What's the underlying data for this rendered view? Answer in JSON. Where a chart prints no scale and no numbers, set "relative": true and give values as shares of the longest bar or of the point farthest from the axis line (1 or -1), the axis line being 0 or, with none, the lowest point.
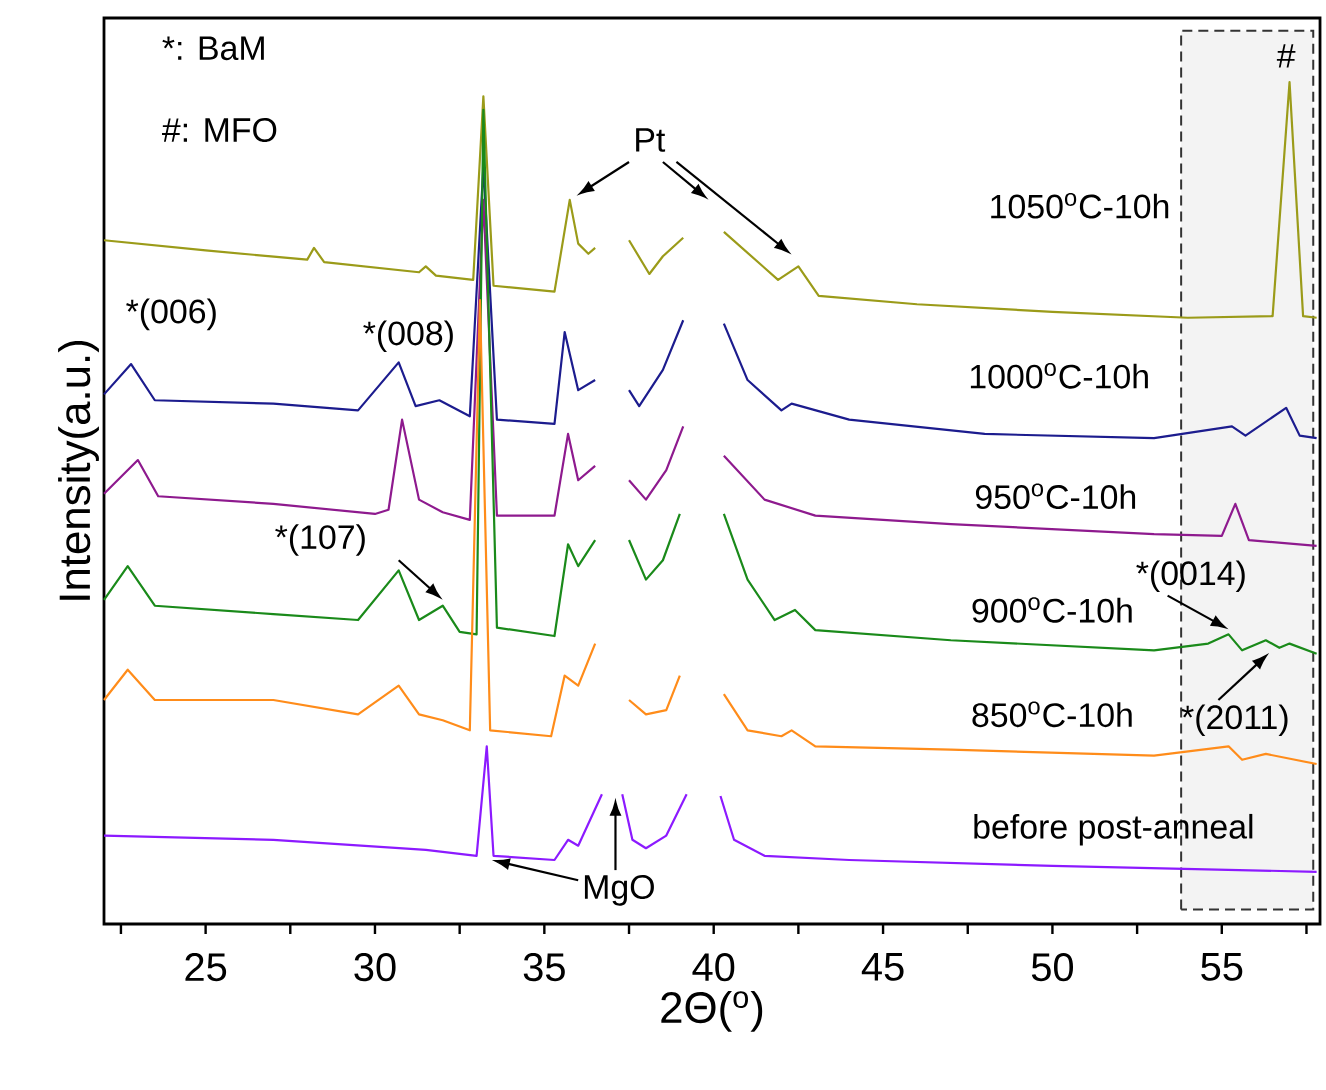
{
  "chart_data": {
    "type": "line",
    "relative": true,
    "xlabel": "2Θ($^{o}$)",
    "ylabel": "Intensity(a.u.)",
    "xlim": [
      22.0,
      57.9
    ],
    "xticks": [
      {
        "value": 22.5,
        "label": null
      },
      25,
      {
        "value": 27.5,
        "label": null
      },
      30,
      {
        "value": 32.5,
        "label": null
      },
      35,
      {
        "value": 37.5,
        "label": null
      },
      40,
      {
        "value": 42.5,
        "label": null
      },
      45,
      {
        "value": 47.5,
        "label": null
      },
      50,
      {
        "value": 52.5,
        "label": null
      },
      55,
      {
        "value": 57.5,
        "label": null
      }
    ],
    "tick_labels": "x",
    "legend": false,
    "grid": false,
    "marker": "none",
    "line_style": "solid",
    "bands": [
      {
        "axis": "x",
        "from": 53.8,
        "to": 57.7,
        "color": "#333333"
      }
    ],
    "annotations": [
      "*: BaM",
      "#: MFO",
      "Pt",
      "*(006)",
      "*(008)",
      "*(107)",
      "*(0014)",
      "*(2011)",
      "#",
      "MgO"
    ],
    "series": [
      {
        "name": "1050$^{o}$C-10h",
        "color": "#9b9b19",
        "x": [
          22.0,
          25.0,
          28.0,
          28.2,
          28.5,
          31.3,
          31.5,
          31.8,
          32.9,
          33.2,
          33.5,
          35.3,
          35.75,
          36.0,
          36.3,
          36.5,
          37.0,
          37.5,
          38.1,
          38.5,
          39.1,
          39.7,
          40.3,
          41.9,
          42.5,
          43.1,
          46,
          50,
          54,
          56.5,
          57.0,
          57.4,
          57.8
        ],
        "values": [
          0.812,
          0.8,
          0.789,
          0.803,
          0.786,
          0.774,
          0.781,
          0.77,
          0.765,
          0.983,
          0.758,
          0.751,
          0.86,
          0.808,
          0.796,
          0.803,
          null,
          0.812,
          0.772,
          0.793,
          0.815,
          null,
          0.822,
          0.765,
          0.781,
          0.746,
          0.736,
          0.727,
          0.72,
          0.722,
          1.0,
          0.722,
          0.72
        ]
      },
      {
        "name": "1000$^{o}$C-10h",
        "color": "#1c1c8e",
        "x": [
          22.0,
          22.8,
          23.5,
          27,
          29.5,
          30.7,
          31.2,
          31.9,
          32.8,
          33.2,
          33.6,
          35.3,
          35.6,
          36.0,
          36.5,
          37.0,
          37.5,
          37.8,
          38.5,
          39.1,
          39.7,
          40.3,
          41,
          42,
          42.3,
          44,
          48,
          53,
          55.3,
          55.7,
          56.9,
          57.3,
          57.8
        ],
        "values": [
          0.629,
          0.665,
          0.622,
          0.618,
          0.61,
          0.667,
          0.615,
          0.622,
          0.603,
          0.9,
          0.599,
          0.594,
          0.703,
          0.634,
          0.646,
          null,
          0.634,
          0.615,
          0.658,
          0.717,
          null,
          0.713,
          0.646,
          0.61,
          0.618,
          0.599,
          0.582,
          0.577,
          0.591,
          0.58,
          0.613,
          0.58,
          0.577
        ]
      },
      {
        "name": "950$^{o}$C-10h",
        "color": "#8e1a8e",
        "x": [
          22.0,
          23.0,
          23.6,
          27,
          30,
          30.4,
          30.8,
          31.3,
          32,
          32.8,
          33.2,
          33.6,
          35.3,
          35.7,
          36.0,
          36.5,
          37.0,
          37.5,
          38.0,
          38.6,
          39.1,
          39.7,
          40.3,
          41.5,
          43,
          47,
          53,
          55.0,
          55.4,
          55.8,
          57.8
        ],
        "values": [
          0.511,
          0.551,
          0.508,
          0.499,
          0.487,
          0.492,
          0.599,
          0.504,
          0.489,
          0.48,
          0.86,
          0.485,
          0.485,
          0.582,
          0.527,
          0.544,
          null,
          0.527,
          0.504,
          0.539,
          0.591,
          null,
          0.556,
          0.504,
          0.485,
          0.475,
          0.463,
          0.461,
          0.499,
          0.456,
          0.449
        ]
      },
      {
        "name": "900$^{o}$C-10h",
        "color": "#1a8a1a",
        "x": [
          22.0,
          22.7,
          23.5,
          27,
          29.5,
          30.7,
          31.3,
          32.0,
          32.5,
          33.0,
          33.2,
          33.6,
          35.3,
          35.7,
          36.0,
          36.5,
          37.0,
          37.5,
          38.0,
          38.5,
          39.0,
          39.7,
          40.3,
          41,
          41.8,
          42.4,
          43,
          47,
          53,
          54.6,
          55.2,
          55.6,
          56.3,
          56.7,
          57.0,
          57.8
        ],
        "values": [
          0.385,
          0.425,
          0.378,
          0.368,
          0.361,
          0.42,
          0.361,
          0.378,
          0.347,
          0.344,
          0.967,
          0.352,
          0.342,
          0.451,
          0.425,
          0.456,
          null,
          0.456,
          0.409,
          0.432,
          0.487,
          null,
          0.487,
          0.409,
          0.361,
          0.373,
          0.349,
          0.337,
          0.325,
          0.333,
          0.344,
          0.325,
          0.337,
          0.328,
          0.333,
          0.321
        ]
      },
      {
        "name": "850$^{o}$C-10h",
        "color": "#ff8c1a",
        "x": [
          22.0,
          22.7,
          23.5,
          27,
          29.5,
          30.7,
          31.3,
          32.0,
          32.8,
          33.1,
          33.4,
          35.2,
          35.6,
          36.0,
          36.5,
          37.0,
          37.5,
          38.0,
          38.6,
          39.0,
          39.7,
          40.3,
          41,
          42,
          42.3,
          43,
          47,
          53,
          55.2,
          55.6,
          56.3,
          57.8
        ],
        "values": [
          0.266,
          0.302,
          0.266,
          0.266,
          0.249,
          0.283,
          0.249,
          0.242,
          0.23,
          0.741,
          0.23,
          0.223,
          0.295,
          0.283,
          0.333,
          null,
          0.266,
          0.249,
          0.254,
          0.295,
          null,
          0.273,
          0.23,
          0.223,
          0.23,
          0.211,
          0.207,
          0.2,
          0.211,
          0.195,
          0.202,
          0.19
        ]
      },
      {
        "name": "before post-anneal",
        "color": "#8c1aff",
        "x": [
          22.0,
          27,
          31.5,
          33.0,
          33.3,
          33.5,
          35.3,
          35.7,
          36.0,
          36.7,
          37.0,
          37.3,
          37.6,
          38.0,
          38.6,
          39.2,
          39.7,
          40.2,
          40.6,
          41.5,
          44,
          50,
          57.8
        ],
        "values": [
          0.105,
          0.1,
          0.088,
          0.081,
          0.211,
          0.081,
          0.076,
          0.1,
          0.093,
          0.154,
          null,
          0.154,
          0.1,
          0.09,
          0.105,
          0.154,
          null,
          0.152,
          0.1,
          0.081,
          0.076,
          0.069,
          0.062
        ]
      }
    ]
  }
}
